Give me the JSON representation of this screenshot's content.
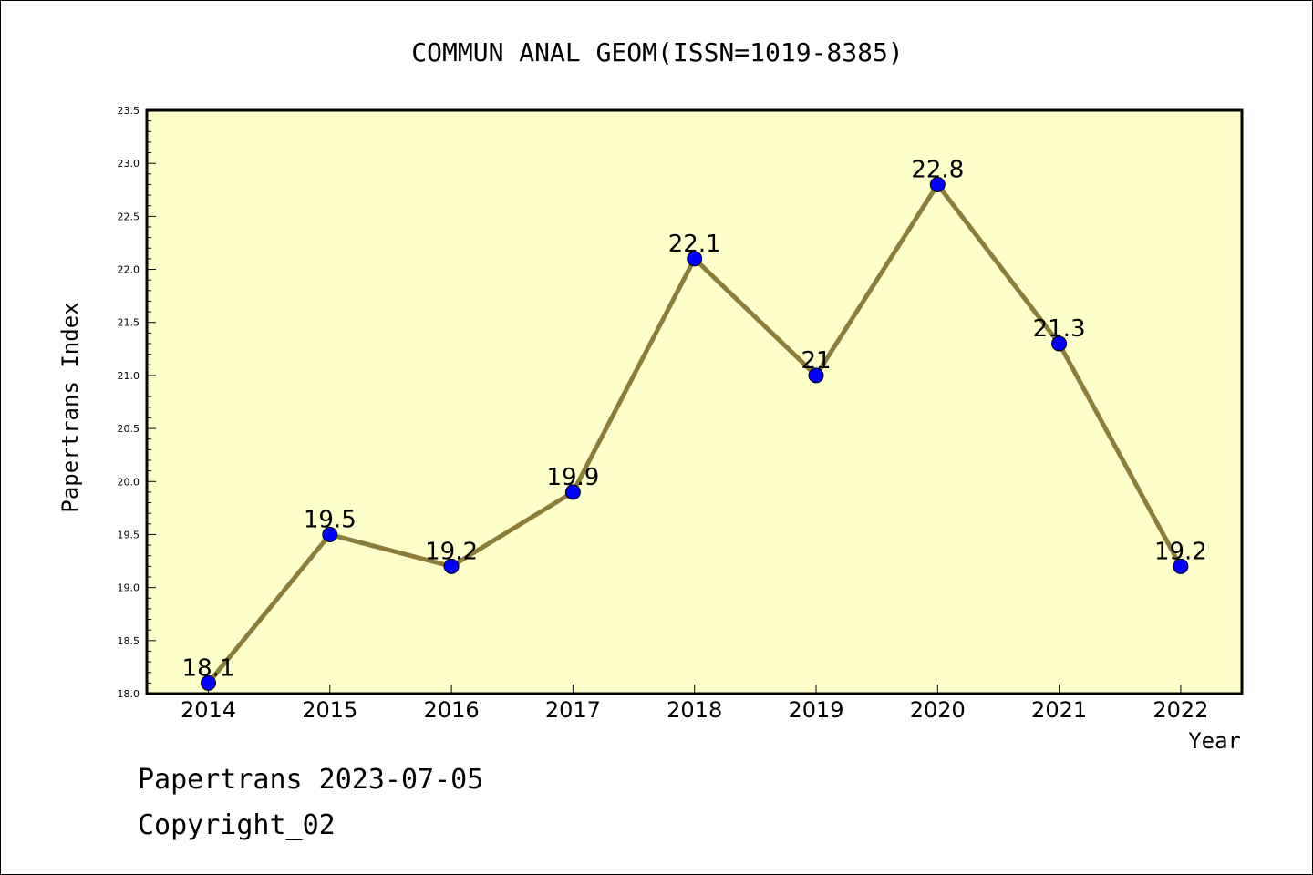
{
  "chart_data": {
    "type": "line",
    "title": "COMMUN ANAL GEOM(ISSN=1019-8385)",
    "xlabel": "Year",
    "ylabel": "Papertrans Index",
    "categories": [
      "2014",
      "2015",
      "2016",
      "2017",
      "2018",
      "2019",
      "2020",
      "2021",
      "2022"
    ],
    "values": [
      18.1,
      19.5,
      19.2,
      19.9,
      22.1,
      21,
      22.8,
      21.3,
      19.2
    ],
    "data_labels": [
      "18.1",
      "19.5",
      "19.2",
      "19.9",
      "22.1",
      "21",
      "22.8",
      "21.3",
      "19.2"
    ],
    "ylim": [
      18.0,
      23.5
    ],
    "yticks": [
      "18.0",
      "18.5",
      "19.0",
      "19.5",
      "20.0",
      "20.5",
      "21.0",
      "21.5",
      "22.0",
      "22.5",
      "23.0",
      "23.5"
    ],
    "grid": false,
    "colors": {
      "plot_background": "#ffffcc",
      "line": "#8c7d3a",
      "marker": "#0000ff"
    }
  },
  "footer": {
    "line1": "Papertrans 2023-07-05",
    "line2": "Copyright_02"
  }
}
